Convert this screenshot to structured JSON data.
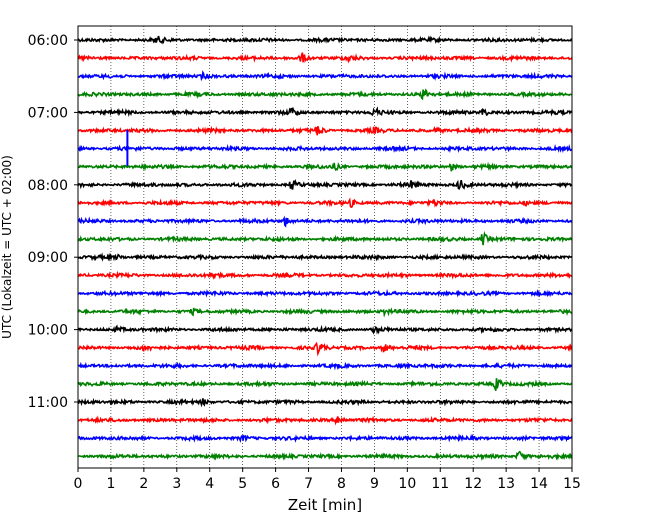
{
  "chart_data": {
    "type": "line",
    "title": "",
    "xlabel": "Zeit  [min]",
    "ylabel": "UTC (Lokalzeit = UTC + 02:00)",
    "xlim": [
      0,
      15
    ],
    "x_ticks": [
      0,
      1,
      2,
      3,
      4,
      5,
      6,
      7,
      8,
      9,
      10,
      11,
      12,
      13,
      14,
      15
    ],
    "y_tick_labels": [
      "06:00",
      "07:00",
      "08:00",
      "09:00",
      "10:00",
      "11:00"
    ],
    "grid": "vertical dotted lines at each minute",
    "trace_start_time": "06:00",
    "trace_interval_minutes": 15,
    "line_colors": [
      "#000000",
      "#ff0000",
      "#0000ff",
      "#008000"
    ],
    "series": [
      {
        "start": "06:00",
        "events": [
          {
            "t": 2.4,
            "a": 0.5
          }
        ]
      },
      {
        "start": "06:15",
        "events": [
          {
            "t": 6.8,
            "a": 0.8
          },
          {
            "t": 8.2,
            "a": 0.3
          }
        ]
      },
      {
        "start": "06:30",
        "events": [
          {
            "t": 3.8,
            "a": 0.5
          }
        ]
      },
      {
        "start": "06:45",
        "events": [
          {
            "t": 10.5,
            "a": 1.0
          }
        ]
      },
      {
        "start": "07:00",
        "events": [
          {
            "t": 6.5,
            "a": 0.6
          },
          {
            "t": 9.0,
            "a": 0.8
          },
          {
            "t": 12.3,
            "a": 0.6
          }
        ]
      },
      {
        "start": "07:15",
        "events": [
          {
            "t": 7.3,
            "a": 0.8
          },
          {
            "t": 9.0,
            "a": 0.4
          },
          {
            "t": 10.9,
            "a": 0.5
          }
        ]
      },
      {
        "start": "07:30",
        "events": [
          {
            "t": 1.5,
            "a": 2.2,
            "spike": true
          }
        ]
      },
      {
        "start": "07:45",
        "events": [
          {
            "t": 7.8,
            "a": 0.5
          },
          {
            "t": 11.3,
            "a": 0.9
          }
        ]
      },
      {
        "start": "08:00",
        "events": [
          {
            "t": 6.5,
            "a": 0.8
          },
          {
            "t": 10.1,
            "a": 0.5
          },
          {
            "t": 11.6,
            "a": 0.9
          }
        ]
      },
      {
        "start": "08:15",
        "events": [
          {
            "t": 8.3,
            "a": 0.6
          },
          {
            "t": 10.8,
            "a": 0.4
          },
          {
            "t": 13.6,
            "a": 0.3
          }
        ]
      },
      {
        "start": "08:30",
        "events": [
          {
            "t": 6.3,
            "a": 0.8
          }
        ]
      },
      {
        "start": "08:45",
        "events": [
          {
            "t": 12.3,
            "a": 1.1
          }
        ]
      },
      {
        "start": "09:00",
        "events": [
          {
            "t": 1.2,
            "a": 0.3
          }
        ]
      },
      {
        "start": "09:15",
        "events": [
          {
            "t": 4.1,
            "a": 0.6
          }
        ]
      },
      {
        "start": "09:30",
        "events": []
      },
      {
        "start": "09:45",
        "events": [
          {
            "t": 3.5,
            "a": 0.4
          },
          {
            "t": 9.3,
            "a": 0.4
          }
        ]
      },
      {
        "start": "10:00",
        "events": [
          {
            "t": 1.2,
            "a": 0.4
          },
          {
            "t": 9.0,
            "a": 0.4
          }
        ]
      },
      {
        "start": "10:15",
        "events": [
          {
            "t": 7.3,
            "a": 1.0
          },
          {
            "t": 9.3,
            "a": 0.8
          },
          {
            "t": 2.0,
            "a": 0.3
          }
        ]
      },
      {
        "start": "10:30",
        "events": []
      },
      {
        "start": "10:45",
        "events": [
          {
            "t": 12.7,
            "a": 1.1
          }
        ]
      },
      {
        "start": "11:00",
        "events": [
          {
            "t": 3.8,
            "a": 0.5
          }
        ]
      },
      {
        "start": "11:15",
        "events": [
          {
            "t": 7.9,
            "a": 0.8
          }
        ]
      },
      {
        "start": "11:30",
        "events": [
          {
            "t": 5.0,
            "a": 0.4
          }
        ]
      },
      {
        "start": "11:45",
        "events": [
          {
            "t": 13.4,
            "a": 0.9
          }
        ]
      }
    ]
  }
}
